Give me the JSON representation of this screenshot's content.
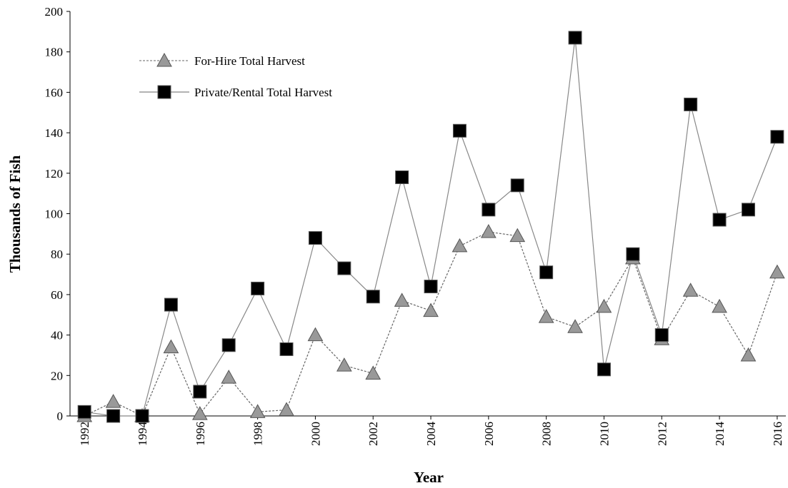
{
  "chart_data": {
    "type": "line",
    "x_label": "Year",
    "y_label": "Thousands of Fish",
    "x": [
      1992,
      1993,
      1994,
      1995,
      1996,
      1997,
      1998,
      1999,
      2000,
      2001,
      2002,
      2003,
      2004,
      2005,
      2006,
      2007,
      2008,
      2009,
      2010,
      2011,
      2012,
      2013,
      2014,
      2015,
      2016
    ],
    "series": [
      {
        "name": "For-Hire Total Harvest",
        "color": "#999999",
        "marker": "triangle",
        "line": "dashed",
        "values": [
          0,
          7,
          0,
          34,
          1,
          19,
          2,
          3,
          40,
          25,
          21,
          57,
          52,
          84,
          91,
          89,
          49,
          44,
          54,
          78,
          38,
          62,
          54,
          30,
          71
        ]
      },
      {
        "name": "Private/Rental Total Harvest",
        "color": "#000000",
        "marker": "square",
        "line": "solid",
        "values": [
          2,
          0,
          0,
          55,
          12,
          35,
          63,
          33,
          88,
          73,
          59,
          118,
          64,
          141,
          102,
          114,
          71,
          187,
          23,
          80,
          40,
          154,
          97,
          102,
          138
        ]
      }
    ],
    "xlim": [
      1991.5,
      2016.3
    ],
    "xticks": [
      1992,
      1994,
      1996,
      1998,
      2000,
      2002,
      2004,
      2006,
      2008,
      2010,
      2012,
      2014,
      2016
    ],
    "ylim": [
      0,
      200
    ],
    "yticks": [
      0,
      20,
      40,
      60,
      80,
      100,
      120,
      140,
      160,
      180,
      200
    ],
    "legend": "upper-left"
  }
}
